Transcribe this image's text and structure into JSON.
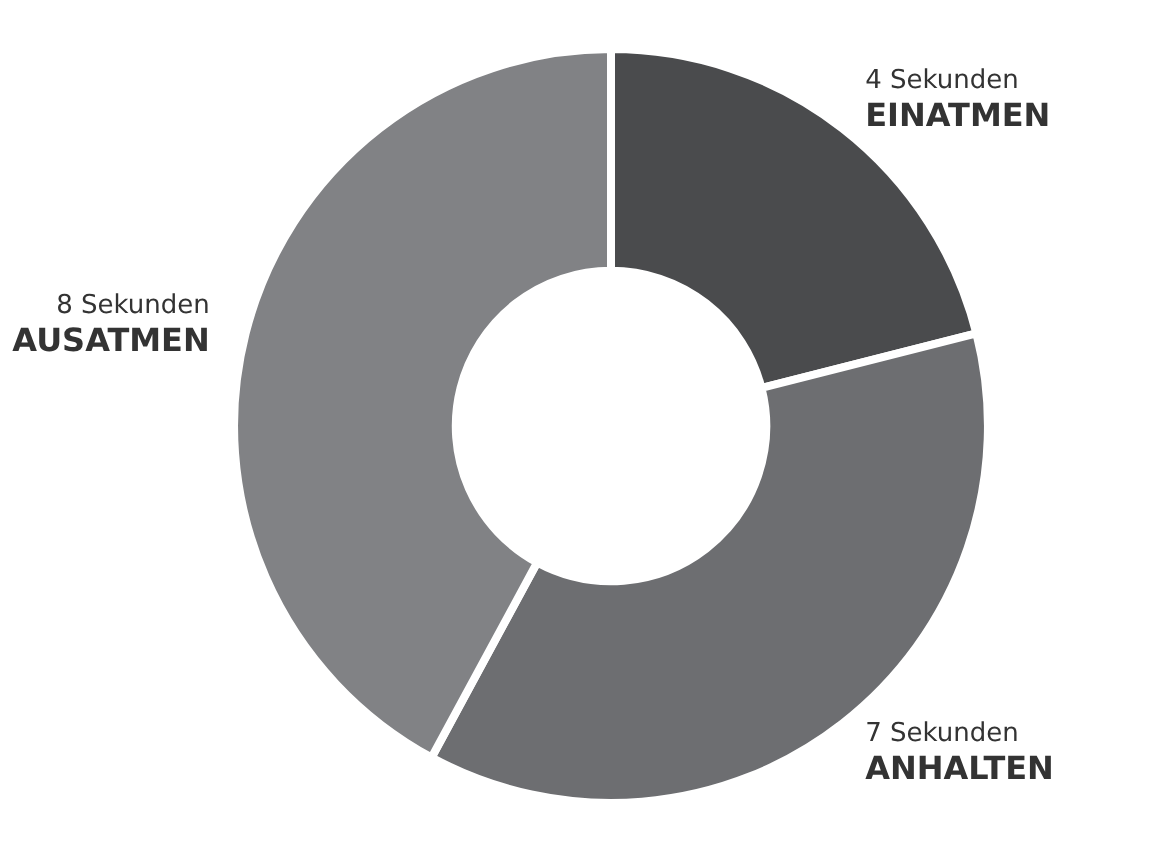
{
  "chart_data": {
    "type": "donut",
    "categories": [
      "EINATMEN",
      "ANHALTEN",
      "AUSATMEN"
    ],
    "values": [
      4,
      7,
      8
    ],
    "value_labels": [
      "4 Sekunden",
      "7 Sekunden",
      "8 Sekunden"
    ],
    "colors": [
      "#4a4b4d",
      "#6d6e71",
      "#818285"
    ]
  }
}
